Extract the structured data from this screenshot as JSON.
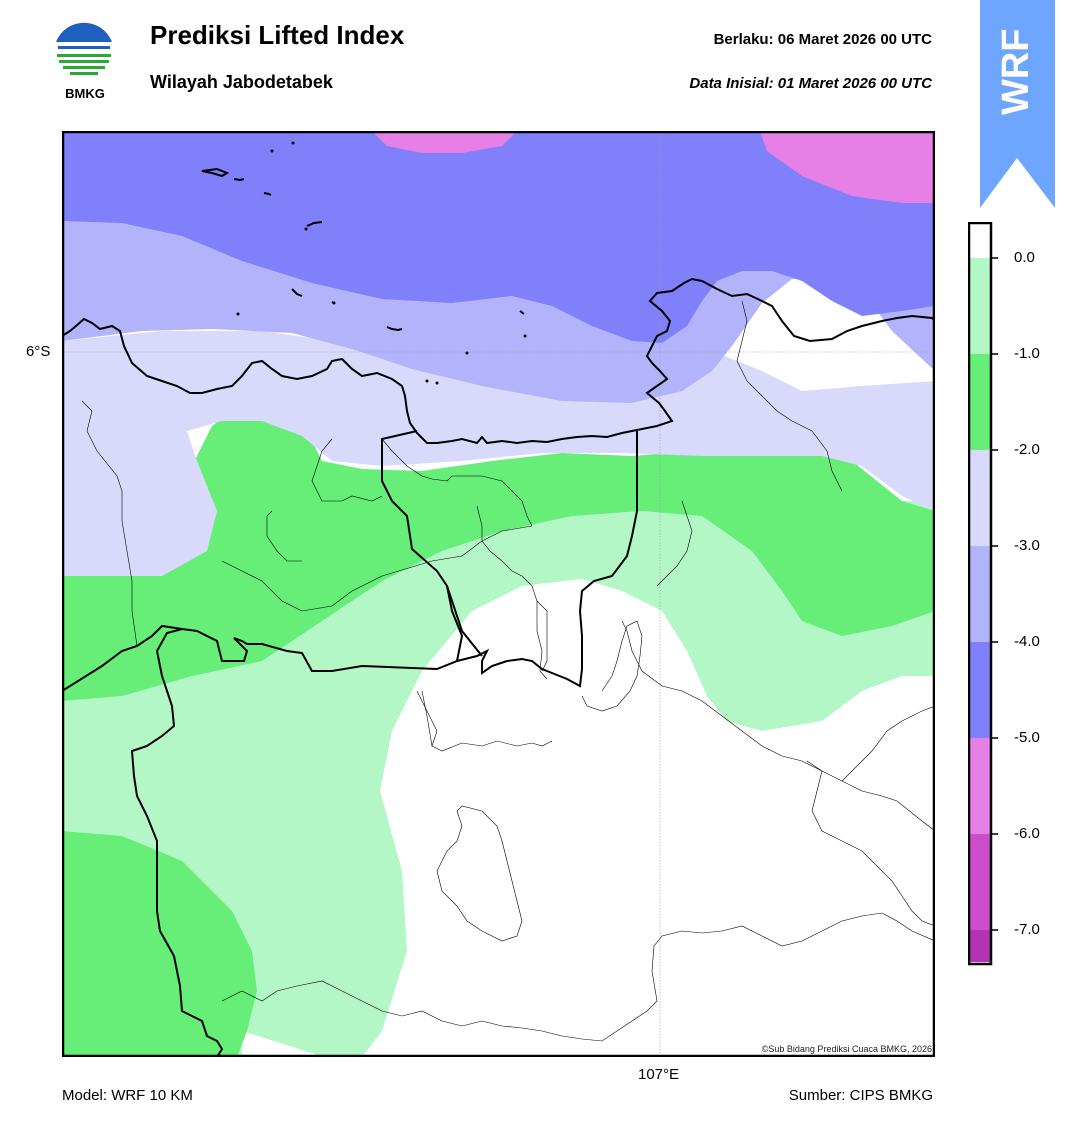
{
  "header": {
    "title": "Prediksi Lifted Index",
    "subtitle": "Wilayah Jabodetabek",
    "valid": "Berlaku:  06 Maret 2026 00 UTC",
    "initial": "Data Inisial:  01 Maret 2026 00 UTC",
    "logo_text": "BMKG",
    "badge": "WRF"
  },
  "map": {
    "lat_label": "6°S",
    "lon_label": "107°E",
    "copyright": "©Sub Bidang Prediksi Cuaca BMKG, 2026"
  },
  "colorbar": {
    "labels": [
      "0.0",
      "-1.0",
      "-2.0",
      "-3.0",
      "-4.0",
      "-5.0",
      "-6.0",
      "-7.0"
    ],
    "colors": [
      "#ffffff",
      "#b3f7c7",
      "#66ee79",
      "#d9d9fb",
      "#b3b3fb",
      "#8080fb",
      "#e680e6",
      "#cc4dcc",
      "#b333b3",
      "#8c1a8c"
    ]
  },
  "footer": {
    "model": "Model: WRF 10 KM",
    "source": "Sumber: CIPS BMKG"
  },
  "colors": {
    "accent_badge": "#6ea6ff"
  }
}
